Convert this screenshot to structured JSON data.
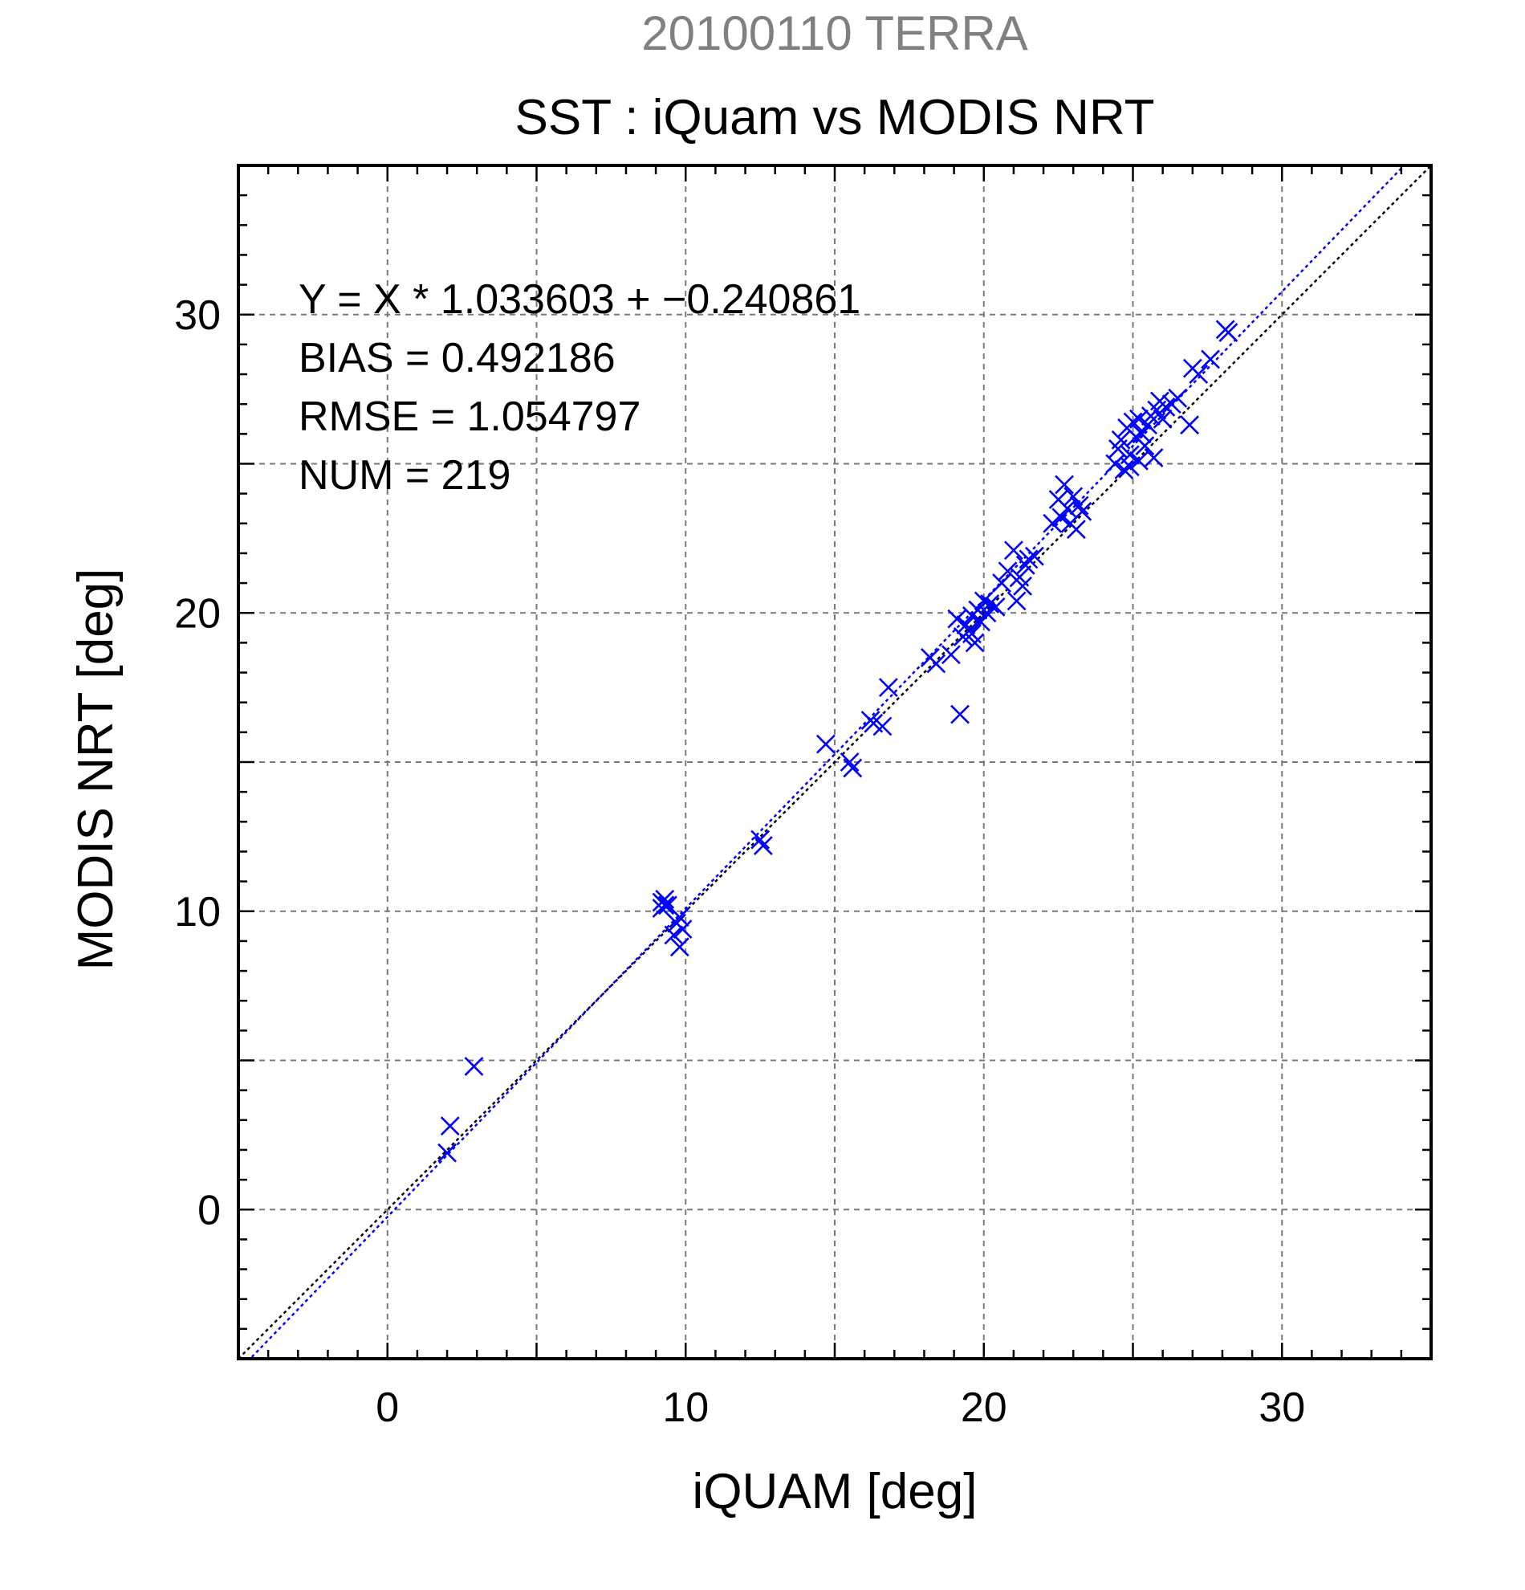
{
  "chart_data": {
    "type": "scatter",
    "title": "20100110 TERRA",
    "subtitle": "SST : iQuam vs MODIS NRT",
    "xlabel": "iQUAM [deg]",
    "ylabel": "MODIS NRT [deg]",
    "xlim": [
      -5,
      35
    ],
    "ylim": [
      -5,
      35
    ],
    "x_ticks": [
      0,
      10,
      20,
      30
    ],
    "y_ticks": [
      0,
      10,
      20,
      30
    ],
    "x_tick_labels": [
      "0",
      "10",
      "20",
      "30"
    ],
    "y_tick_labels": [
      "0",
      "10",
      "20",
      "30"
    ],
    "grid": true,
    "grid_step": 5,
    "annotations": [
      "Y = X * 1.033603 + −0.240861",
      "BIAS = 0.492186",
      "RMSE = 1.054797",
      "NUM = 219"
    ],
    "fit_line": {
      "slope": 1.033603,
      "intercept": -0.240861
    },
    "reference_line": {
      "slope": 1,
      "intercept": 0
    },
    "marker": "x",
    "points": [
      [
        2.0,
        1.9
      ],
      [
        2.1,
        2.8
      ],
      [
        2.9,
        4.8
      ],
      [
        9.2,
        10.3
      ],
      [
        9.3,
        10.2
      ],
      [
        9.2,
        10.1
      ],
      [
        9.4,
        10.2
      ],
      [
        9.3,
        10.4
      ],
      [
        9.7,
        9.6
      ],
      [
        9.8,
        9.8
      ],
      [
        9.9,
        9.4
      ],
      [
        9.8,
        8.8
      ],
      [
        9.6,
        9.2
      ],
      [
        12.5,
        12.4
      ],
      [
        12.6,
        12.2
      ],
      [
        14.7,
        15.6
      ],
      [
        15.5,
        15.0
      ],
      [
        15.6,
        14.8
      ],
      [
        16.2,
        16.4
      ],
      [
        16.3,
        16.3
      ],
      [
        16.6,
        16.2
      ],
      [
        16.8,
        17.5
      ],
      [
        18.2,
        18.5
      ],
      [
        18.4,
        18.3
      ],
      [
        18.9,
        18.6
      ],
      [
        19.1,
        19.8
      ],
      [
        19.2,
        16.6
      ],
      [
        19.3,
        19.2
      ],
      [
        19.4,
        19.6
      ],
      [
        19.5,
        19.4
      ],
      [
        19.6,
        19.9
      ],
      [
        19.7,
        19.0
      ],
      [
        19.8,
        20.1
      ],
      [
        19.9,
        19.7
      ],
      [
        20.0,
        20.4
      ],
      [
        20.1,
        20.0
      ],
      [
        20.2,
        20.3
      ],
      [
        20.4,
        20.2
      ],
      [
        19.6,
        19.3
      ],
      [
        20.6,
        21.0
      ],
      [
        20.8,
        21.4
      ],
      [
        21.0,
        22.1
      ],
      [
        21.1,
        20.4
      ],
      [
        21.2,
        21.2
      ],
      [
        21.3,
        20.9
      ],
      [
        21.4,
        21.6
      ],
      [
        21.5,
        21.8
      ],
      [
        21.7,
        21.9
      ],
      [
        22.3,
        23.0
      ],
      [
        22.5,
        23.8
      ],
      [
        22.6,
        23.2
      ],
      [
        22.7,
        24.3
      ],
      [
        22.8,
        23.5
      ],
      [
        22.9,
        23.0
      ],
      [
        23.0,
        23.9
      ],
      [
        23.1,
        22.8
      ],
      [
        23.2,
        23.6
      ],
      [
        23.3,
        23.4
      ],
      [
        24.4,
        25.0
      ],
      [
        24.5,
        25.5
      ],
      [
        24.6,
        25.8
      ],
      [
        24.7,
        24.8
      ],
      [
        24.8,
        26.2
      ],
      [
        24.9,
        25.3
      ],
      [
        25.0,
        26.4
      ],
      [
        25.1,
        25.9
      ],
      [
        25.2,
        26.5
      ],
      [
        25.3,
        26.0
      ],
      [
        25.4,
        25.6
      ],
      [
        25.5,
        26.3
      ],
      [
        25.6,
        26.6
      ],
      [
        25.7,
        25.2
      ],
      [
        25.8,
        26.8
      ],
      [
        25.9,
        27.1
      ],
      [
        26.0,
        26.5
      ],
      [
        26.1,
        26.9
      ],
      [
        26.3,
        27.0
      ],
      [
        26.5,
        27.2
      ],
      [
        26.9,
        26.3
      ],
      [
        27.0,
        28.2
      ],
      [
        27.2,
        28.0
      ],
      [
        27.6,
        28.5
      ],
      [
        28.1,
        29.5
      ],
      [
        28.2,
        29.4
      ],
      [
        24.9,
        24.9
      ],
      [
        25.2,
        25.1
      ]
    ]
  }
}
